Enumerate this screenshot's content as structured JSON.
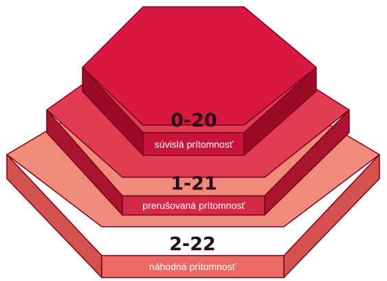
{
  "colors": {
    "background": "#ffffff",
    "outline": "#7a0018",
    "text": "#2b0a1a",
    "caption_text": "#ffffff"
  },
  "tiers": [
    {
      "range": "0-20",
      "caption": "súvislá prítomnosť",
      "top_color": "#d81840",
      "side_color": "#b8102e",
      "dark_side_color": "#9c0a26",
      "band_color": "#c8143a"
    },
    {
      "range": "1-21",
      "caption": "prerušovaná prítomnosť",
      "top_color": "#e23c54",
      "side_color": "#c8203e",
      "dark_side_color": "#a9142f",
      "band_color": "#d42a48"
    },
    {
      "range": "2-22",
      "caption": "náhodná prítomnosť",
      "top_color": "#f08a7a",
      "side_color": "#e8706a",
      "dark_side_color": "#d4524e",
      "band_color": "#ec6a64"
    }
  ]
}
